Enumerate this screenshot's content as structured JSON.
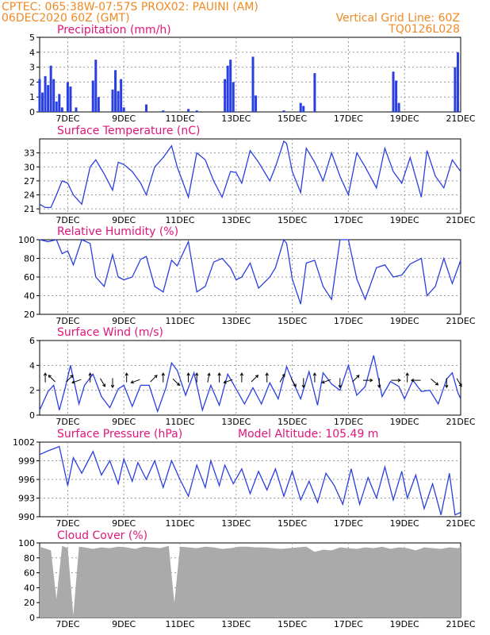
{
  "header": {
    "left_line1": "CPTEC:   065:38W-07:57S   PROX02: PAUINI (AM)",
    "left_line2": "06DEC2020 60Z (GMT)",
    "right_line1": "Vertical Grid Line: 60Z",
    "right_line2": "TQ0126L028"
  },
  "colors": {
    "header": "#f08a24",
    "title": "#e0157a",
    "series": "#2a3fe0",
    "precip_bar": "#2a3fe0",
    "cloud_fill": "#aaaaaa",
    "wind_arrow": "#000000"
  },
  "x_axis": {
    "tick_labels": [
      "7DEC",
      "9DEC",
      "11DEC",
      "13DEC",
      "15DEC",
      "17DEC",
      "19DEC",
      "21DEC"
    ],
    "day_start": 6.0,
    "day_end": 21.0
  },
  "chart_data": [
    {
      "type": "bar",
      "title": "Precipitation (mm/h)",
      "ylim": [
        0,
        5
      ],
      "yticks": [
        "0",
        "1",
        "2",
        "3",
        "4",
        "5"
      ],
      "x": [
        6.0,
        6.1,
        6.2,
        6.3,
        6.4,
        6.5,
        6.6,
        6.7,
        6.8,
        7.0,
        7.1,
        7.3,
        7.9,
        8.0,
        8.1,
        8.6,
        8.7,
        8.8,
        8.9,
        9.0,
        9.8,
        10.4,
        11.3,
        11.6,
        12.6,
        12.7,
        12.8,
        12.9,
        13.6,
        13.7,
        14.7,
        15.3,
        15.4,
        15.8,
        18.6,
        18.7,
        18.8,
        20.8,
        20.9
      ],
      "values": [
        2.2,
        1.3,
        2.4,
        1.8,
        3.1,
        2.2,
        0.7,
        1.2,
        0.3,
        2.0,
        1.7,
        0.3,
        2.1,
        3.5,
        1.0,
        1.5,
        2.8,
        1.4,
        2.2,
        0.3,
        0.5,
        0.1,
        0.2,
        0.1,
        2.2,
        3.1,
        3.5,
        2.0,
        3.7,
        1.1,
        0.1,
        0.6,
        0.4,
        2.6,
        2.7,
        2.1,
        0.6,
        3.0,
        4.0
      ]
    },
    {
      "type": "line",
      "title": "Surface Temperature (nC)",
      "ylim": [
        20,
        36
      ],
      "yticks": [
        "21",
        "24",
        "27",
        "30",
        "33"
      ],
      "ytick_values": [
        21,
        24,
        27,
        30,
        33
      ],
      "x": [
        6.0,
        6.2,
        6.4,
        6.6,
        6.8,
        7.0,
        7.2,
        7.5,
        7.8,
        8.0,
        8.3,
        8.6,
        8.8,
        9.0,
        9.3,
        9.6,
        9.8,
        10.1,
        10.4,
        10.7,
        10.9,
        11.3,
        11.6,
        11.9,
        12.2,
        12.5,
        12.8,
        13.0,
        13.2,
        13.5,
        13.8,
        14.2,
        14.4,
        14.7,
        14.8,
        15.0,
        15.3,
        15.5,
        15.8,
        16.1,
        16.4,
        16.7,
        17.0,
        17.3,
        17.6,
        18.0,
        18.3,
        18.6,
        18.9,
        19.2,
        19.6,
        19.8,
        20.1,
        20.4,
        20.7,
        21.0
      ],
      "values": [
        22,
        21.3,
        21.3,
        24,
        27,
        26.5,
        24,
        22,
        30,
        31.5,
        28.5,
        25,
        31,
        30.5,
        29,
        26.5,
        24,
        30,
        32,
        34.5,
        30,
        23.5,
        33,
        31.5,
        27,
        23.5,
        29,
        28.8,
        26.5,
        33.5,
        31,
        27,
        30,
        35.5,
        35,
        29,
        24.5,
        34,
        31,
        27,
        33,
        28,
        24,
        33,
        30,
        25.5,
        34,
        29,
        26.5,
        32,
        23.5,
        33.5,
        28,
        25.5,
        31.5,
        29
      ]
    },
    {
      "type": "line",
      "title": "Relative Humidity (%)",
      "ylim": [
        20,
        100
      ],
      "yticks": [
        "20",
        "40",
        "60",
        "80",
        "100"
      ],
      "ytick_values": [
        20,
        40,
        60,
        80,
        100
      ],
      "x": [
        6.0,
        6.3,
        6.6,
        6.8,
        7.0,
        7.2,
        7.5,
        7.8,
        8.0,
        8.3,
        8.6,
        8.8,
        9.0,
        9.3,
        9.6,
        9.8,
        10.1,
        10.4,
        10.7,
        10.9,
        11.3,
        11.6,
        11.9,
        12.2,
        12.5,
        12.8,
        13.0,
        13.2,
        13.5,
        13.8,
        14.2,
        14.4,
        14.7,
        14.8,
        15.0,
        15.3,
        15.5,
        15.8,
        16.1,
        16.4,
        16.7,
        17.0,
        17.3,
        17.6,
        18.0,
        18.3,
        18.6,
        18.9,
        19.2,
        19.6,
        19.8,
        20.1,
        20.4,
        20.7,
        21.0
      ],
      "values": [
        100,
        98,
        100,
        85,
        88,
        73,
        100,
        96,
        60,
        50,
        84,
        60,
        57,
        60,
        79,
        82,
        50,
        44,
        78,
        72,
        98,
        44,
        50,
        76,
        80,
        70,
        57,
        60,
        75,
        48,
        60,
        70,
        100,
        96,
        58,
        31,
        75,
        78,
        50,
        36,
        100,
        100,
        58,
        36,
        70,
        73,
        60,
        62,
        74,
        80,
        40,
        50,
        80,
        53,
        78
      ]
    },
    {
      "type": "line",
      "title": "Surface Wind (m/s)",
      "ylim": [
        0,
        6
      ],
      "yticks": [
        "0",
        "2",
        "4",
        "6"
      ],
      "ytick_values": [
        0,
        2,
        4,
        6
      ],
      "x": [
        6.0,
        6.3,
        6.5,
        6.7,
        6.9,
        7.1,
        7.4,
        7.6,
        7.9,
        8.2,
        8.5,
        8.8,
        9.0,
        9.3,
        9.6,
        9.9,
        10.2,
        10.5,
        10.7,
        10.9,
        11.2,
        11.5,
        11.8,
        12.1,
        12.4,
        12.7,
        13.0,
        13.3,
        13.6,
        13.9,
        14.2,
        14.5,
        14.8,
        15.0,
        15.3,
        15.6,
        15.9,
        16.1,
        16.4,
        16.7,
        17.0,
        17.3,
        17.6,
        17.9,
        18.2,
        18.5,
        18.8,
        19.0,
        19.3,
        19.6,
        19.9,
        20.2,
        20.5,
        20.7,
        20.9,
        21.0
      ],
      "values": [
        0.4,
        1.9,
        2.4,
        0.4,
        2.1,
        4.0,
        0.9,
        2.4,
        3.3,
        1.5,
        0.6,
        2.1,
        2.4,
        0.7,
        2.4,
        2.4,
        0.3,
        2.2,
        4.2,
        3.6,
        1.6,
        3.4,
        0.4,
        2.4,
        0.8,
        3.3,
        2.1,
        0.9,
        2.2,
        0.9,
        2.6,
        1.3,
        3.9,
        2.8,
        1.3,
        3.5,
        0.8,
        3.4,
        2.5,
        2.0,
        4.0,
        1.6,
        2.3,
        4.8,
        1.5,
        2.7,
        2.3,
        1.3,
        2.8,
        1.9,
        2.0,
        0.9,
        2.9,
        3.4,
        1.8,
        1.3
      ],
      "arrows": {
        "x": [
          6.2,
          6.5,
          7.0,
          7.4,
          7.8,
          8.2,
          8.6,
          9.1,
          9.5,
          10.0,
          10.4,
          10.8,
          11.3,
          11.6,
          12.0,
          12.4,
          12.8,
          13.2,
          13.6,
          14.1,
          14.6,
          15.0,
          15.4,
          15.8,
          16.3,
          16.7,
          17.2,
          17.6,
          18.1,
          18.6,
          19.1,
          19.5,
          20.0,
          20.5,
          20.9
        ],
        "y": [
          2.8,
          2.8,
          2.8,
          2.8,
          2.8,
          2.8,
          2.8,
          2.8,
          2.8,
          2.8,
          2.8,
          2.8,
          2.8,
          2.8,
          2.8,
          2.8,
          2.8,
          2.8,
          2.8,
          2.8,
          2.8,
          2.8,
          2.8,
          2.8,
          2.8,
          2.8,
          2.8,
          2.8,
          2.8,
          2.8,
          2.8,
          2.8,
          2.8,
          2.8,
          2.8
        ],
        "dir_deg": [
          90,
          135,
          45,
          200,
          90,
          300,
          270,
          90,
          200,
          45,
          90,
          315,
          90,
          90,
          80,
          90,
          200,
          90,
          45,
          90,
          60,
          300,
          270,
          90,
          200,
          270,
          45,
          0,
          270,
          0,
          90,
          180,
          320,
          270,
          300
        ]
      }
    },
    {
      "type": "line",
      "title": "Surface Pressure (hPa)",
      "annotation": "Model Altitude: 105.49 m",
      "ylim": [
        990,
        1002
      ],
      "yticks": [
        "990",
        "993",
        "996",
        "999",
        "1002"
      ],
      "ytick_values": [
        990,
        993,
        996,
        999,
        1002
      ],
      "x": [
        6.0,
        6.3,
        6.7,
        7.0,
        7.2,
        7.5,
        7.9,
        8.2,
        8.5,
        8.8,
        9.0,
        9.3,
        9.5,
        9.8,
        10.1,
        10.4,
        10.7,
        11.0,
        11.3,
        11.6,
        11.9,
        12.1,
        12.4,
        12.6,
        12.9,
        13.2,
        13.5,
        13.8,
        14.1,
        14.4,
        14.7,
        15.0,
        15.3,
        15.6,
        15.9,
        16.2,
        16.5,
        16.8,
        17.1,
        17.4,
        17.7,
        18.0,
        18.3,
        18.6,
        18.9,
        19.1,
        19.4,
        19.7,
        20.0,
        20.3,
        20.6,
        20.8,
        21.0
      ],
      "values": [
        1000,
        1000.6,
        1001.3,
        995,
        999.5,
        997,
        1000.5,
        996.7,
        999,
        995.3,
        999.3,
        995.7,
        998.7,
        996,
        999,
        994.7,
        999,
        996,
        993.3,
        998.3,
        994.7,
        999,
        995,
        998.3,
        995.3,
        997.7,
        993.7,
        997.3,
        994.3,
        997.7,
        993.3,
        997.3,
        992.7,
        995.7,
        992.3,
        997,
        995,
        992,
        997.7,
        992,
        996.3,
        993,
        998,
        992.7,
        997.3,
        993,
        996.7,
        991.3,
        995.3,
        990.3,
        997,
        990.3,
        990.7
      ]
    },
    {
      "type": "area",
      "title": "Cloud Cover (%)",
      "ylim": [
        0,
        100
      ],
      "yticks": [
        "0",
        "20",
        "40",
        "60",
        "80",
        "100"
      ],
      "ytick_values": [
        0,
        20,
        40,
        60,
        80,
        100
      ],
      "x": [
        6.0,
        6.4,
        6.6,
        6.8,
        7.0,
        7.2,
        7.4,
        7.6,
        7.9,
        8.2,
        8.5,
        8.8,
        9.1,
        9.4,
        9.7,
        10.0,
        10.3,
        10.6,
        10.8,
        11.0,
        11.3,
        11.6,
        11.9,
        12.2,
        12.5,
        12.8,
        13.1,
        13.4,
        13.7,
        14.0,
        14.3,
        14.6,
        14.9,
        15.2,
        15.5,
        15.8,
        16.1,
        16.4,
        16.7,
        17.0,
        17.3,
        17.6,
        17.9,
        18.2,
        18.5,
        18.8,
        19.1,
        19.4,
        19.7,
        20.0,
        20.3,
        20.6,
        20.9,
        21.0
      ],
      "values": [
        95,
        90,
        25,
        96,
        93,
        3,
        95,
        94,
        92,
        94,
        93,
        95,
        94,
        92,
        95,
        94,
        93,
        96,
        20,
        95,
        94,
        93,
        95,
        94,
        92,
        93,
        95,
        95,
        94,
        94,
        93,
        92,
        93,
        94,
        95,
        88,
        91,
        90,
        94,
        93,
        92,
        94,
        93,
        95,
        92,
        94,
        93,
        90,
        94,
        93,
        92,
        94,
        93,
        95
      ]
    }
  ]
}
